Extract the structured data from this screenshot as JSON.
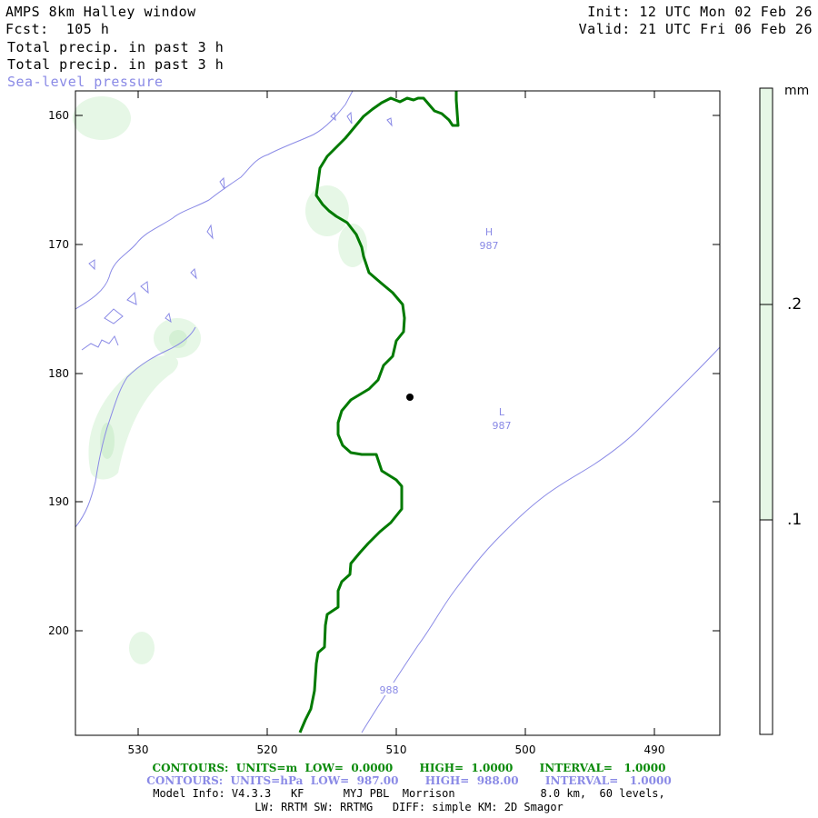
{
  "header": {
    "title": "AMPS 8km Halley window",
    "fcst": "Fcst:  105 h",
    "field1": "Total precip. in past 3 h",
    "field2": "Total precip. in past 3 h",
    "field3": "Sea-level pressure",
    "init": "Init: 12 UTC Mon 02 Feb 26",
    "valid": "Valid: 21 UTC Fri 06 Feb 26"
  },
  "axes": {
    "x_ticks": [
      "530",
      "520",
      "510",
      "500",
      "490"
    ],
    "y_ticks": [
      "160",
      "170",
      "180",
      "190",
      "200"
    ]
  },
  "map_labels": {
    "high_symbol": "H",
    "high_value": "987",
    "low_symbol": "L",
    "low_value": "987",
    "contour_label": "988"
  },
  "colorbar": {
    "unit": "mm",
    "levels": [
      ".2",
      ".1"
    ],
    "fill_color": "#e6f7e6"
  },
  "colors": {
    "green_contour": "#007a00",
    "pressure_contour": "#8a8ae6",
    "precip_fill": "#e6f7e6"
  },
  "footer": {
    "line1": "CONTOURS:  UNITS=m  LOW=  0.0000       HIGH=  1.0000       INTERVAL=   1.0000",
    "line2": "CONTOURS:  UNITS=hPa  LOW=  987.00       HIGH=  988.00       INTERVAL=   1.0000",
    "line3": "Model Info: V4.3.3   KF      MYJ PBL  Morrison             8.0 km,  60 levels,",
    "line4": "LW: RRTM SW: RRTMG   DIFF: simple KM: 2D Smagor"
  }
}
